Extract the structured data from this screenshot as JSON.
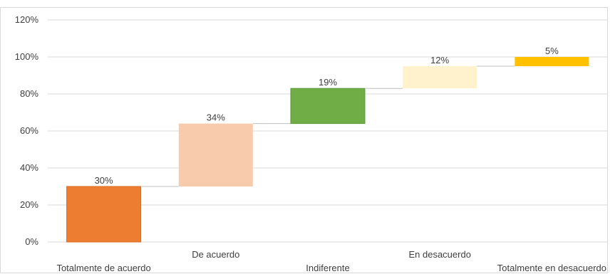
{
  "chart_data": {
    "type": "bar",
    "subtype": "waterfall",
    "title": "",
    "xlabel": "",
    "ylabel": "",
    "ylim": [
      0,
      120
    ],
    "yticks": [
      0,
      20,
      40,
      60,
      80,
      100,
      120
    ],
    "ytick_labels": [
      "0%",
      "20%",
      "40%",
      "60%",
      "80%",
      "100%",
      "120%"
    ],
    "grid": true,
    "legend": "none",
    "categories": [
      "Totalmente de acuerdo",
      "De acuerdo",
      "Indiferente",
      "En desacuerdo",
      "Totalmente en desacuerdo"
    ],
    "values": [
      30,
      34,
      19,
      12,
      5
    ],
    "value_labels": [
      "30%",
      "34%",
      "19%",
      "12%",
      "5%"
    ],
    "colors": [
      "#ed7d31",
      "#f8cbad",
      "#70ad47",
      "#fff2cc",
      "#ffc000"
    ]
  }
}
